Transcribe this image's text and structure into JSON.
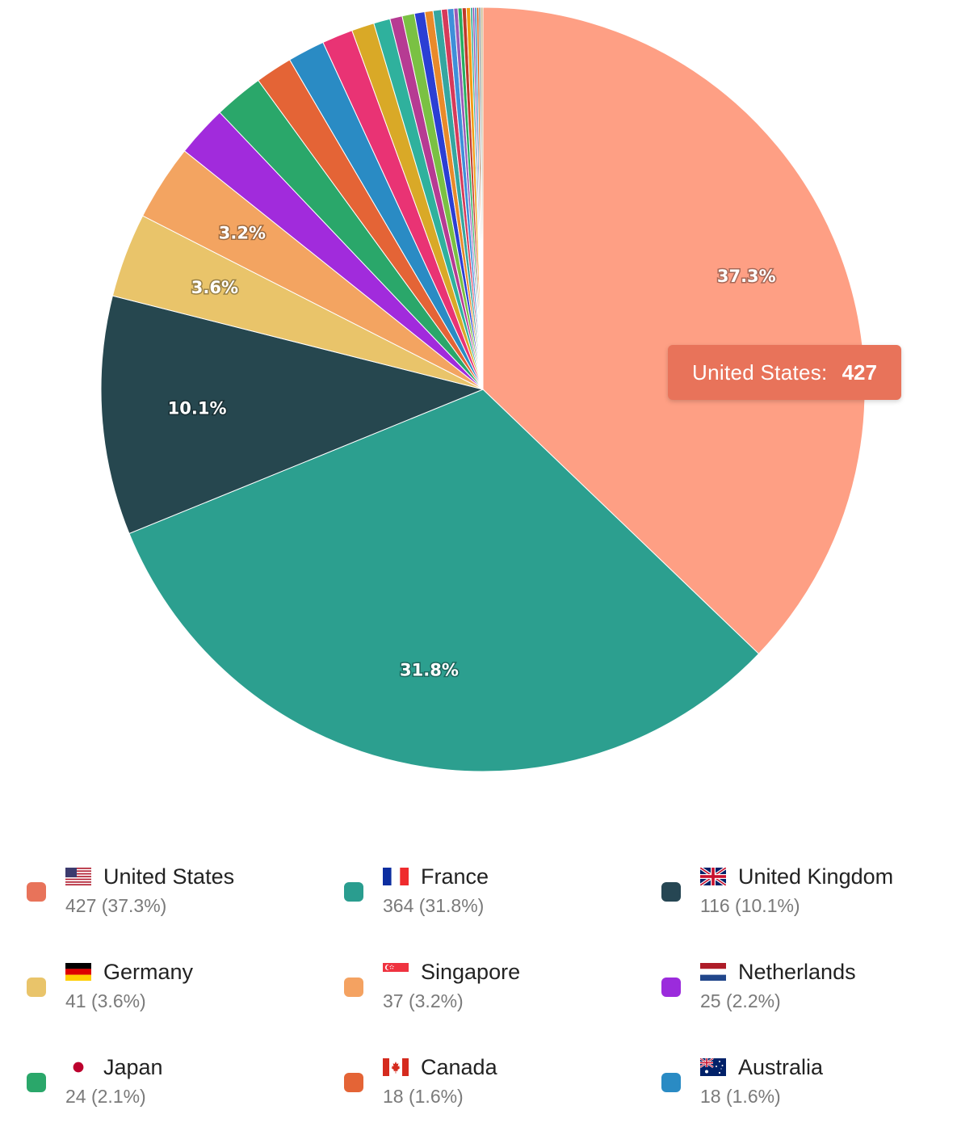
{
  "tooltip": {
    "label": "United States:",
    "value": "427"
  },
  "chart_data": {
    "type": "pie",
    "categories": [
      "United States",
      "France",
      "United Kingdom",
      "Germany",
      "Singapore",
      "Netherlands",
      "Japan",
      "Canada",
      "Australia"
    ],
    "values": [
      427,
      364,
      116,
      41,
      37,
      25,
      24,
      18,
      18
    ],
    "slice_labels": [
      "37.3%",
      "31.8%",
      "10.1%",
      "3.6%",
      "3.2%",
      "",
      "",
      "",
      ""
    ],
    "colors": [
      "#fe9f84",
      "#2c9f8f",
      "#26474f",
      "#e9c46a",
      "#f3a461",
      "#a12bdc",
      "#2aa76a",
      "#e46436",
      "#2a8bc4"
    ],
    "other_values": [
      15,
      11,
      8,
      6,
      6,
      5,
      4,
      4,
      3,
      3,
      2,
      2,
      2,
      2,
      1,
      1,
      1,
      1,
      1,
      1
    ],
    "other_colors": [
      "#e93374",
      "#d9a927",
      "#2fb19d",
      "#b63b93",
      "#7ac143",
      "#2b3fd4",
      "#e98a2a",
      "#35a6a0",
      "#d63a5a",
      "#3f8fd9",
      "#9b59b6",
      "#27ae60",
      "#c0392b",
      "#f39c12",
      "#16a085",
      "#8e44ad",
      "#2980b9",
      "#d35400",
      "#7f8c8d",
      "#c0b283"
    ]
  },
  "legend": [
    {
      "name": "United States",
      "count": "427 (37.3%)",
      "color": "#e8735a",
      "flag": "us-flag"
    },
    {
      "name": "France",
      "count": "364 (31.8%)",
      "color": "#2a9d8f",
      "flag": "fr-flag"
    },
    {
      "name": "United Kingdom",
      "count": "116 (10.1%)",
      "color": "#264653",
      "flag": "gb-flag"
    },
    {
      "name": "Germany",
      "count": "41 (3.6%)",
      "color": "#e9c46a",
      "flag": "de-flag"
    },
    {
      "name": "Singapore",
      "count": "37 (3.2%)",
      "color": "#f4a261",
      "flag": "sg-flag"
    },
    {
      "name": "Netherlands",
      "count": "25 (2.2%)",
      "color": "#9b2bdc",
      "flag": "nl-flag"
    },
    {
      "name": "Japan",
      "count": "24 (2.1%)",
      "color": "#2aa76a",
      "flag": "jp-flag"
    },
    {
      "name": "Canada",
      "count": "18 (1.6%)",
      "color": "#e46436",
      "flag": "ca-flag"
    },
    {
      "name": "Australia",
      "count": "18 (1.6%)",
      "color": "#2a8bc4",
      "flag": "au-flag"
    }
  ]
}
